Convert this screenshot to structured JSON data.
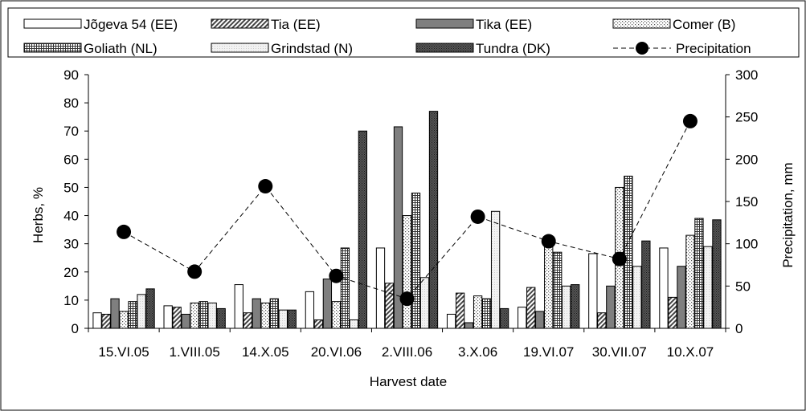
{
  "chart_data": {
    "type": "bar",
    "xlabel": "Harvest date",
    "ylabel": "Herbs, %",
    "y2label": "Precipitation, mm",
    "ylim": [
      0,
      90
    ],
    "y2lim": [
      0,
      300
    ],
    "yticks": [
      0,
      10,
      20,
      30,
      40,
      50,
      60,
      70,
      80,
      90
    ],
    "y2ticks": [
      0,
      50,
      100,
      150,
      200,
      250,
      300
    ],
    "grid": false,
    "legend_position": "top",
    "categories": [
      "15.VI.05",
      "1.VIII.05",
      "14.X.05",
      "20.VI.06",
      "2.VIII.06",
      "3.X.06",
      "19.VI.07",
      "30.VII.07",
      "10.X.07"
    ],
    "series": [
      {
        "name": "Jõgeva 54 (EE)",
        "pattern": "white",
        "values": [
          5.5,
          8,
          15.5,
          13,
          28.5,
          5,
          7.5,
          26.5,
          28.5
        ]
      },
      {
        "name": "Tia (EE)",
        "pattern": "diag",
        "values": [
          5,
          7.5,
          5.5,
          3,
          16,
          12.5,
          14.5,
          5.5,
          11
        ]
      },
      {
        "name": "Tika (EE)",
        "pattern": "solid-gray",
        "values": [
          10.5,
          5,
          10.5,
          17.5,
          71.5,
          2,
          6,
          15,
          22
        ]
      },
      {
        "name": "Comer (B)",
        "pattern": "dots",
        "values": [
          6,
          9,
          9,
          9.5,
          40,
          11.5,
          29,
          50,
          33
        ]
      },
      {
        "name": "Goliath (NL)",
        "pattern": "grid",
        "values": [
          9.5,
          9.5,
          10.5,
          28.5,
          48,
          10.5,
          27,
          54,
          39
        ]
      },
      {
        "name": "Grindstad (N)",
        "pattern": "light",
        "values": [
          12,
          9,
          6.5,
          3,
          18,
          41.5,
          15,
          22,
          29
        ]
      },
      {
        "name": "Tundra (DK)",
        "pattern": "dark",
        "values": [
          14,
          7,
          6.5,
          70,
          77,
          7,
          15.5,
          31,
          38.5
        ]
      }
    ],
    "line_series": {
      "name": "Precipitation",
      "axis": "right",
      "values": [
        114,
        67,
        168,
        62,
        35,
        132,
        103,
        82,
        245
      ]
    }
  }
}
